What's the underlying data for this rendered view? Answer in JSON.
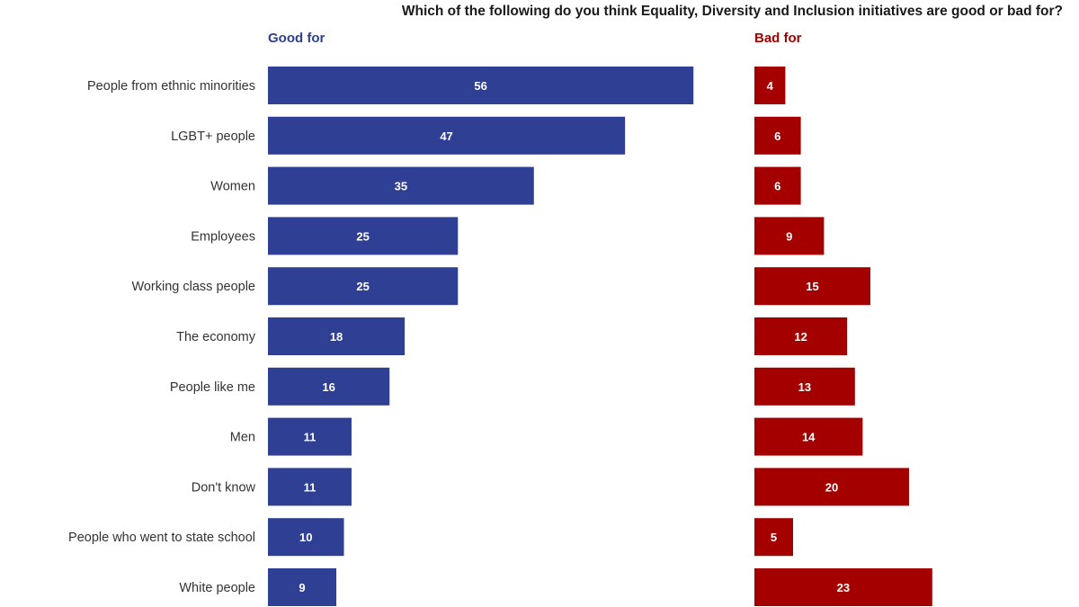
{
  "chart_data": {
    "type": "bar",
    "title": "Which of the following do you think Equality, Diversity and Inclusion initiatives are good or bad for?",
    "orientation": "horizontal",
    "categories": [
      "People from ethnic minorities",
      "LGBT+ people",
      "Women",
      "Employees",
      "Working class people",
      "The economy",
      "People like me",
      "Men",
      "Don't know",
      "People who went to state school",
      "White people"
    ],
    "series": [
      {
        "name": "Good for",
        "color": "#2f3f93",
        "values": [
          56,
          47,
          35,
          25,
          25,
          18,
          16,
          11,
          11,
          10,
          9
        ]
      },
      {
        "name": "Bad for",
        "color": "#a50000",
        "values": [
          4,
          6,
          6,
          9,
          15,
          12,
          13,
          14,
          20,
          5,
          23
        ]
      }
    ],
    "grid": false,
    "data_labels": true
  }
}
